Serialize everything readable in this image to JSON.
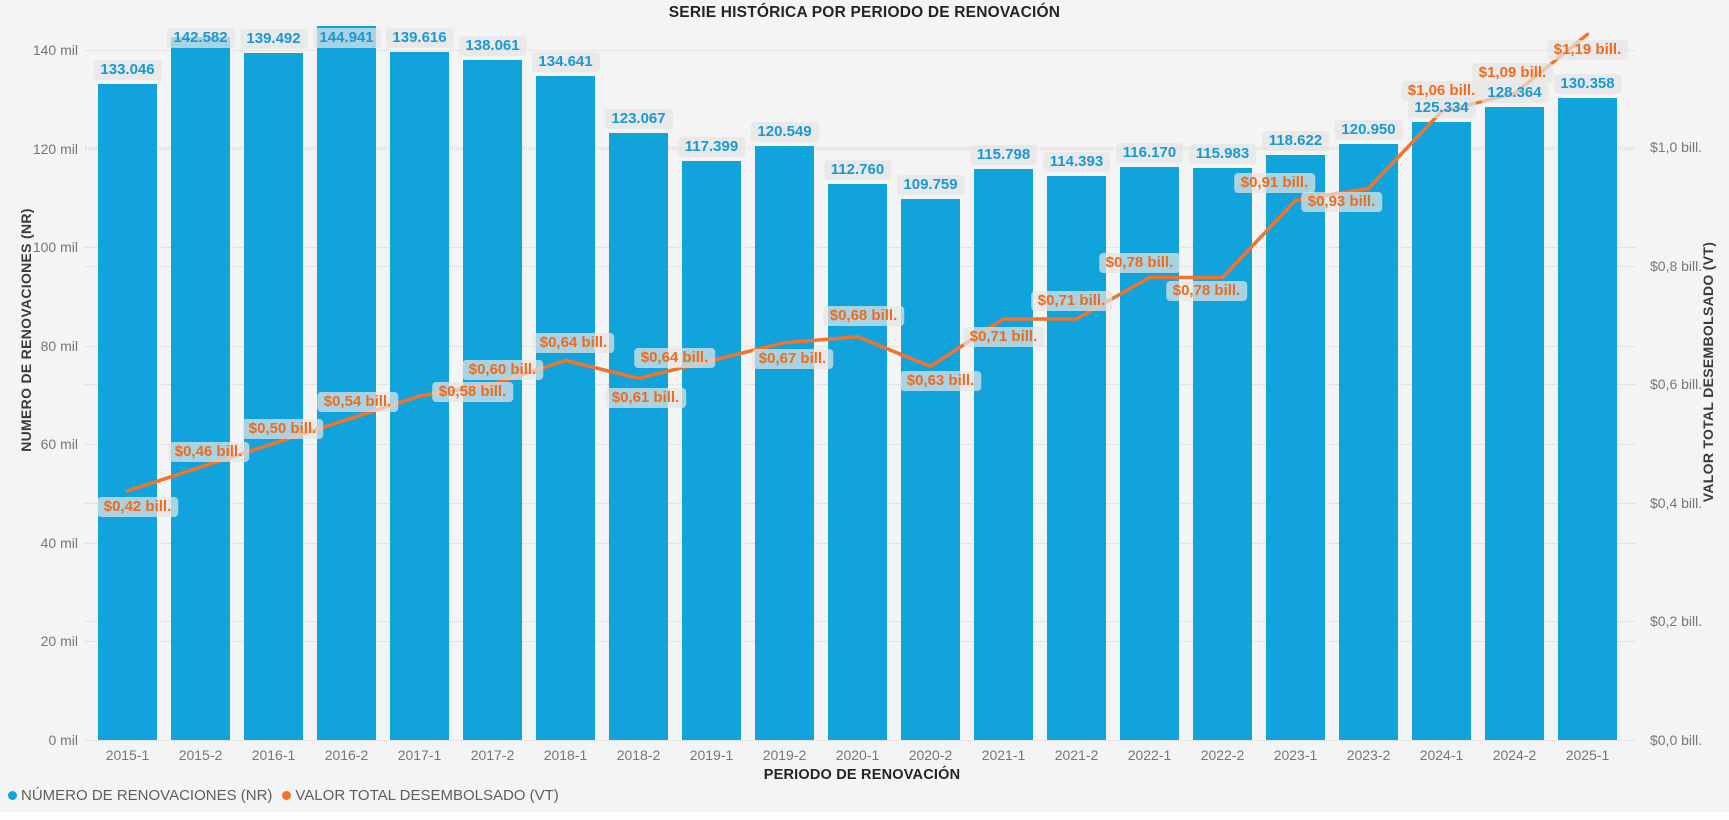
{
  "title": "SERIE HISTÓRICA POR PERIODO DE RENOVACIÓN",
  "legend": [
    {
      "label": "NÚMERO DE RENOVACIONES (NR)",
      "color": "#10a3dc"
    },
    {
      "label": "VALOR TOTAL DESEMBOLSADO (VT)",
      "color": "#f0742c"
    }
  ],
  "colors": {
    "background": "#f4f4f4",
    "bar": "#10a3dc",
    "bar_label_text": "#1899d3",
    "line": "#f0742c",
    "line_label_text": "#ed6c1b",
    "gridline": "#d6d4d2",
    "axis_text": "#767676"
  },
  "chart_data": {
    "type": "bar",
    "subtype": "combo-bar-line-dual-axis",
    "title": "SERIE HISTÓRICA POR PERIODO DE RENOVACIÓN",
    "xlabel": "PERIODO DE RENOVACIÓN",
    "grid": "dotted horizontal, both axes",
    "legend_position": "bottom-left",
    "categories": [
      "2015-1",
      "2015-2",
      "2016-1",
      "2016-2",
      "2017-1",
      "2017-2",
      "2018-1",
      "2018-2",
      "2019-1",
      "2019-2",
      "2020-1",
      "2020-2",
      "2021-1",
      "2021-2",
      "2022-1",
      "2022-2",
      "2023-1",
      "2023-2",
      "2024-1",
      "2024-2",
      "2025-1"
    ],
    "series": [
      {
        "name": "NÚMERO DE RENOVACIONES (NR)",
        "type": "bar",
        "axis": "left",
        "color": "#10a3dc",
        "values": [
          133046,
          142582,
          139492,
          144941,
          139616,
          138061,
          134641,
          123067,
          117399,
          120549,
          112760,
          109759,
          115798,
          114393,
          116170,
          115983,
          118622,
          120950,
          125334,
          128364,
          130358
        ],
        "labels": [
          "133.046",
          "142.582",
          "139.492",
          "144.941",
          "139.616",
          "138.061",
          "134.641",
          "123.067",
          "117.399",
          "120.549",
          "112.760",
          "109.759",
          "115.798",
          "114.393",
          "116.170",
          "115.983",
          "118.622",
          "120.950",
          "125.334",
          "128.364",
          "130.358"
        ]
      },
      {
        "name": "VALOR TOTAL DESEMBOLSADO (VT)",
        "type": "line",
        "axis": "right",
        "color": "#f0742c",
        "values": [
          0.42,
          0.46,
          0.5,
          0.54,
          0.58,
          0.6,
          0.64,
          0.61,
          0.64,
          0.67,
          0.68,
          0.63,
          0.71,
          0.71,
          0.78,
          0.78,
          0.91,
          0.93,
          1.06,
          1.09,
          1.19
        ],
        "labels": [
          "$0,42 bill.",
          "$0,46 bill.",
          "$0,50 bill.",
          "$0,54 bill.",
          "$0,58 bill.",
          "$0,60 bill.",
          "$0,64 bill.",
          "$0,61 bill.",
          "$0,64 bill.",
          "$0,67 bill.",
          "$0,68 bill.",
          "$0,63 bill.",
          "$0,71 bill.",
          "$0,71 bill.",
          "$0,78 bill.",
          "$0,78 bill.",
          "$0,91 bill.",
          "$0,93 bill.",
          "$1,06 bill.",
          "$1,09 bill.",
          "$1,19 bill."
        ],
        "label_offsets": [
          [
            10,
            16
          ],
          [
            8,
            -15
          ],
          [
            9,
            -15
          ],
          [
            11,
            -18
          ],
          [
            53,
            -4
          ],
          [
            10,
            -14
          ],
          [
            8,
            -17
          ],
          [
            7,
            20
          ],
          [
            -37,
            -2
          ],
          [
            8,
            16
          ],
          [
            6,
            -21
          ],
          [
            10,
            15
          ],
          [
            0,
            18
          ],
          [
            -5,
            -18
          ],
          [
            -10,
            -14
          ],
          [
            -16,
            14
          ],
          [
            -21,
            -17
          ],
          [
            -27,
            13
          ],
          [
            0,
            -20
          ],
          [
            -2,
            -21
          ],
          [
            0,
            16
          ]
        ]
      }
    ],
    "left_axis": {
      "title": "NUMERO DE RENOVACIONES (NR)",
      "ticks": [
        "0 mil",
        "20 mil",
        "40 mil",
        "60 mil",
        "80 mil",
        "100 mil",
        "120 mil",
        "140 mil"
      ],
      "min": 0,
      "max": 140000,
      "tick_step": 20000
    },
    "right_axis": {
      "title": "VALOR TOTAL DESEMBOLSADO (VT)",
      "ticks": [
        "$0,0 bill.",
        "$0,2 bill.",
        "$0,4 bill.",
        "$0,6 bill.",
        "$0,8 bill.",
        "$1,0 bill."
      ],
      "min": 0,
      "max": 1.0,
      "tick_step": 0.2
    }
  }
}
